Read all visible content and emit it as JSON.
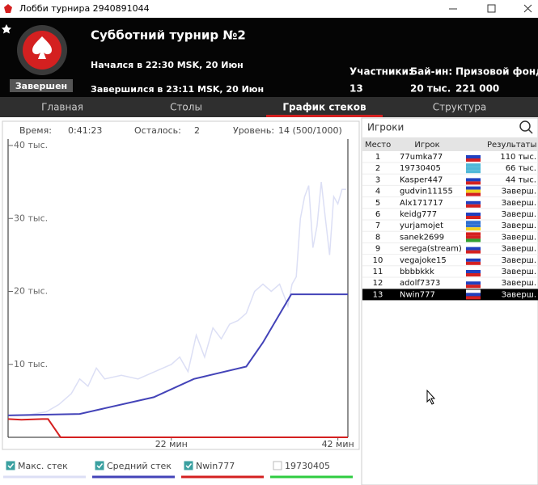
{
  "window_title": "Лобби турнира 2940891044",
  "header": {
    "title": "Субботний турнир №2",
    "status": "Завершен",
    "started": "Начался в 22:30 MSK, 20 Июн",
    "ended": "Завершился в 23:11 MSK, 20 Июн",
    "stats": [
      {
        "label": "Участники:",
        "value": "13"
      },
      {
        "label": "Бай-ин:",
        "value": "20 тыс."
      },
      {
        "label": "Призовой фонд:",
        "value": "221 000"
      }
    ]
  },
  "tabs": {
    "items": [
      "Главная",
      "Столы",
      "График стеков",
      "Структура"
    ],
    "active": 2
  },
  "info": [
    {
      "label": "Время:",
      "value": "0:41:23"
    },
    {
      "label": "Осталось:",
      "value": "2"
    },
    {
      "label": "Уровень:",
      "value": "14 (500/1000)"
    }
  ],
  "chart_data": {
    "type": "line",
    "xlim": [
      2.4,
      43.2
    ],
    "ylim": [
      0,
      40000
    ],
    "xticks": [
      {
        "value": 22,
        "label": "22 мин"
      },
      {
        "value": 42,
        "label": "42 мин"
      }
    ],
    "yticks": [
      {
        "value": 10000,
        "label": "10 тыс."
      },
      {
        "value": 20000,
        "label": "20 тыс."
      },
      {
        "value": 30000,
        "label": "30 тыс."
      },
      {
        "value": 40000,
        "label": "40 тыс."
      }
    ],
    "series": [
      {
        "name": "Макс. стек",
        "color": "#dcdff5",
        "checked": true,
        "x": [
          2.4,
          5,
          7,
          8.5,
          10,
          11,
          12,
          13,
          14,
          16,
          18,
          20,
          22,
          23,
          24,
          25,
          26,
          27,
          28,
          29,
          30,
          31,
          32,
          33,
          34,
          35,
          36,
          36.5,
          37,
          37.5,
          38,
          38.5,
          39,
          39.5,
          40,
          40.5,
          41,
          41.5,
          42,
          42.5,
          43
        ],
        "values": [
          3000,
          3100,
          3500,
          4500,
          6000,
          8000,
          7000,
          9500,
          8000,
          8500,
          8000,
          9000,
          10000,
          11000,
          9000,
          14000,
          11000,
          15000,
          13500,
          15500,
          16000,
          17000,
          20000,
          21000,
          20000,
          21000,
          18000,
          21000,
          22000,
          30000,
          33000,
          34500,
          26000,
          29000,
          35000,
          30000,
          25000,
          33000,
          32000,
          34000,
          34000
        ]
      },
      {
        "name": "Средний стек",
        "color": "#4343b8",
        "checked": true,
        "x": [
          2.4,
          11,
          19.9,
          24.7,
          31,
          33,
          36.4,
          43.2
        ],
        "values": [
          3000,
          3200,
          5500,
          8000,
          9700,
          13000,
          19600,
          19600
        ]
      },
      {
        "name": "Nwin777",
        "color": "#d42020",
        "checked": true,
        "x": [
          2.4,
          4,
          6.5,
          7.2,
          8.7,
          43.2
        ],
        "values": [
          2500,
          2400,
          2500,
          2500,
          0,
          0
        ]
      },
      {
        "name": "19730405",
        "color": "#2ecc40",
        "checked": false,
        "x": [],
        "values": []
      }
    ]
  },
  "players": {
    "search": "Игроки",
    "columns": [
      "Место",
      "Игрок",
      "Результаты"
    ],
    "rows": [
      [
        1,
        "77umka77",
        "110 тыс."
      ],
      [
        2,
        "19730405",
        "66 тыс."
      ],
      [
        3,
        "Kasper447",
        "44 тыс."
      ],
      [
        4,
        "gudvin11155",
        "Заверш."
      ],
      [
        5,
        "Alx171717",
        "Заверш."
      ],
      [
        6,
        "keidg777",
        "Заверш."
      ],
      [
        7,
        "yurjamojet",
        "Заверш."
      ],
      [
        8,
        "sanek2699",
        "Заверш."
      ],
      [
        9,
        "serega(stream)",
        "Заверш."
      ],
      [
        10,
        "vegajoke15",
        "Заверш."
      ],
      [
        11,
        "bbbbkkk",
        "Заверш."
      ],
      [
        12,
        "adolf7373",
        "Заверш."
      ],
      [
        13,
        "Nwin777",
        "Заверш."
      ]
    ],
    "selected": 12
  }
}
